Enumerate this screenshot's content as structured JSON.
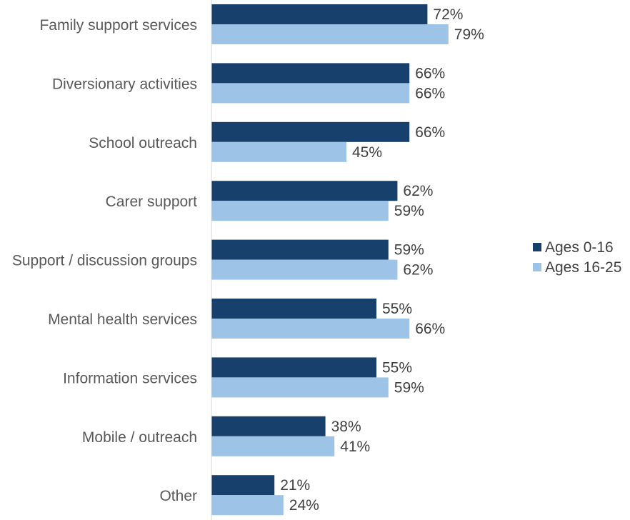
{
  "chart_data": {
    "type": "bar",
    "orientation": "horizontal",
    "categories": [
      "Family support services",
      "Diversionary activities",
      "School outreach",
      "Carer support",
      "Support / discussion groups",
      "Mental health services",
      "Information services",
      "Mobile / outreach",
      "Other"
    ],
    "series": [
      {
        "name": "Ages 0-16",
        "color": "#17406d",
        "values": [
          72,
          66,
          66,
          62,
          59,
          55,
          55,
          38,
          21
        ]
      },
      {
        "name": "Ages 16-25",
        "color": "#9dc3e6",
        "values": [
          79,
          66,
          45,
          59,
          62,
          66,
          59,
          41,
          24
        ]
      }
    ],
    "value_suffix": "%",
    "xlim": [
      0,
      100
    ],
    "grid": false,
    "legend_position": "right"
  }
}
